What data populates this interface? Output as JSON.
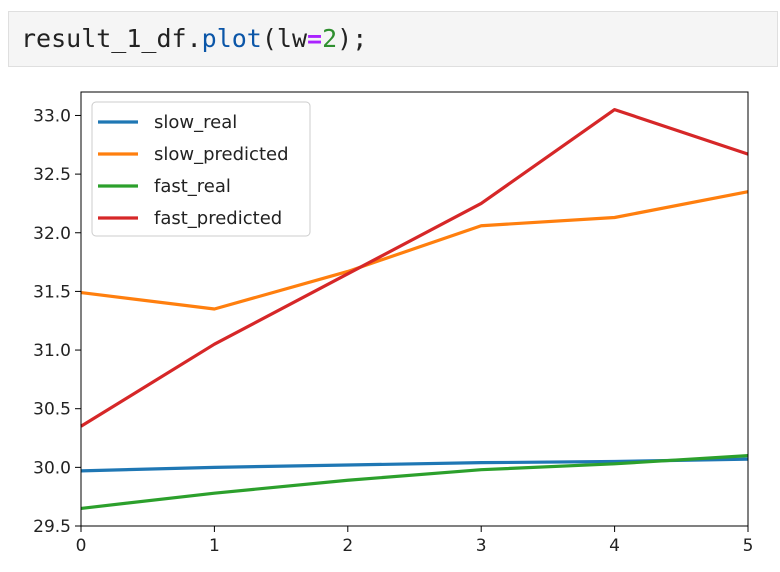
{
  "code_cell": {
    "var": "result_1_df",
    "dot": ".",
    "method": "plot",
    "open": "(",
    "kwarg": "lw",
    "eq": "=",
    "num": "2",
    "close": ");"
  },
  "chart_data": {
    "type": "line",
    "x": [
      0,
      1,
      2,
      3,
      4,
      5
    ],
    "xlim": [
      0,
      5
    ],
    "ylim": [
      29.5,
      33.2
    ],
    "xticks": [
      "0",
      "1",
      "2",
      "3",
      "4",
      "5"
    ],
    "yticks": [
      "29.5",
      "30.0",
      "30.5",
      "31.0",
      "31.5",
      "32.0",
      "32.5",
      "33.0"
    ],
    "grid": false,
    "legend_position": "top-left",
    "line_width": 2,
    "series": [
      {
        "name": "slow_real",
        "color": "#1f77b4",
        "values": [
          29.97,
          30.0,
          30.02,
          30.04,
          30.05,
          30.07
        ]
      },
      {
        "name": "slow_predicted",
        "color": "#ff7f0e",
        "values": [
          31.49,
          31.35,
          31.67,
          32.06,
          32.13,
          32.35
        ]
      },
      {
        "name": "fast_real",
        "color": "#2ca02c",
        "values": [
          29.65,
          29.78,
          29.89,
          29.98,
          30.03,
          30.1
        ]
      },
      {
        "name": "fast_predicted",
        "color": "#d62728",
        "values": [
          30.35,
          31.05,
          31.65,
          32.25,
          33.05,
          32.67
        ]
      }
    ]
  }
}
